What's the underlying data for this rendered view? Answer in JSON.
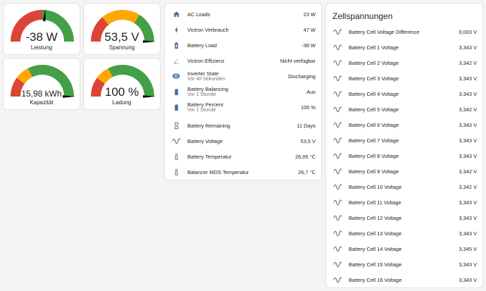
{
  "colors": {
    "red": "#db4437",
    "orange": "#ffa600",
    "green": "#43a047",
    "icon_blue": "#44739e",
    "needle": "#000000"
  },
  "gauges": [
    {
      "id": "leistung",
      "value_text": "-38 W",
      "label": "Leistung",
      "needle_fraction": 0.53,
      "segments": [
        {
          "color": "#db4437",
          "from": 0,
          "to": 0.5
        },
        {
          "color": "#43a047",
          "from": 0.5,
          "to": 1
        }
      ]
    },
    {
      "id": "spannung",
      "value_text": "53,5 V",
      "label": "Spannung",
      "needle_fraction": 1.0,
      "segments": [
        {
          "color": "#db4437",
          "from": 0,
          "to": 0.28
        },
        {
          "color": "#ffa600",
          "from": 0.28,
          "to": 0.68
        },
        {
          "color": "#43a047",
          "from": 0.68,
          "to": 1
        }
      ]
    },
    {
      "id": "kapazitaet",
      "value_text": "15,98 kWh",
      "label": "Kapazität",
      "needle_fraction": 1.0,
      "segments": [
        {
          "color": "#db4437",
          "from": 0,
          "to": 0.2
        },
        {
          "color": "#ffa600",
          "from": 0.2,
          "to": 0.35
        },
        {
          "color": "#43a047",
          "from": 0.35,
          "to": 1
        }
      ]
    },
    {
      "id": "ladung",
      "value_text": "100 %",
      "label": "Ladung",
      "needle_fraction": 1.0,
      "segments": [
        {
          "color": "#db4437",
          "from": 0,
          "to": 0.2
        },
        {
          "color": "#ffa600",
          "from": 0.2,
          "to": 0.35
        },
        {
          "color": "#43a047",
          "from": 0.35,
          "to": 1
        }
      ]
    }
  ],
  "entities": [
    {
      "icon": "home-icon",
      "name": "AC Loads",
      "value": "23 W"
    },
    {
      "icon": "lightning-icon",
      "name": "Victron Verbrauch",
      "value": "47 W"
    },
    {
      "icon": "battery-charging-icon",
      "name": "Battery Load",
      "value": "-38 W"
    },
    {
      "icon": "angle-icon",
      "name": "Victron Effizienz",
      "value": "Nicht verfügbar"
    },
    {
      "icon": "eye-icon",
      "name": "Inverter State",
      "sub": "Vor 40 Sekunden",
      "value": "Discharging"
    },
    {
      "icon": "battery-icon",
      "name": "Battery Balancing",
      "sub": "Vor 1 Stunde",
      "value": "Aus"
    },
    {
      "icon": "battery-icon",
      "name": "Battery Percent",
      "sub": "Vor 1 Stunde",
      "value": "100 %"
    },
    {
      "icon": "hourglass-icon",
      "name": "Battery Remaining",
      "value": "11 Days"
    },
    {
      "icon": "sine-wave-icon",
      "name": "Battery Voltage",
      "value": "53,5 V"
    },
    {
      "icon": "thermometer-icon",
      "name": "Battery Temperatur",
      "value": "26,05 °C"
    },
    {
      "icon": "thermometer-icon",
      "name": "Balancer MOS Temperatur",
      "value": "26,7 °C"
    }
  ],
  "cells": {
    "title": "Zellspannungen",
    "items": [
      {
        "name": "Battery Cell Voltage Difference",
        "value": "0,003 V"
      },
      {
        "name": "Battery Cell 1 Voltage",
        "value": "3,343 V"
      },
      {
        "name": "Battery Cell 2 Voltage",
        "value": "3,342 V"
      },
      {
        "name": "Battery Cell 3 Voltage",
        "value": "3,343 V"
      },
      {
        "name": "Battery Cell 4 Voltage",
        "value": "3,343 V"
      },
      {
        "name": "Battery Cell 5 Voltage",
        "value": "3,342 V"
      },
      {
        "name": "Battery Cell 6 Voltage",
        "value": "3,343 V"
      },
      {
        "name": "Battery Cell 7 Voltage",
        "value": "3,343 V"
      },
      {
        "name": "Battery Cell 8 Voltage",
        "value": "3,343 V"
      },
      {
        "name": "Battery Cell 9 Voltage",
        "value": "3,342 V"
      },
      {
        "name": "Battery Cell 10 Voltage",
        "value": "3,342 V"
      },
      {
        "name": "Battery Cell 11 Voltage",
        "value": "3,343 V"
      },
      {
        "name": "Battery Cell 12 Voltage",
        "value": "3,343 V"
      },
      {
        "name": "Battery Cell 13 Voltage",
        "value": "3,343 V"
      },
      {
        "name": "Battery Cell 14 Voltage",
        "value": "3,345 V"
      },
      {
        "name": "Battery Cell 15 Voltage",
        "value": "3,343 V"
      },
      {
        "name": "Battery Cell 16 Voltage",
        "value": "3,343 V"
      }
    ]
  }
}
